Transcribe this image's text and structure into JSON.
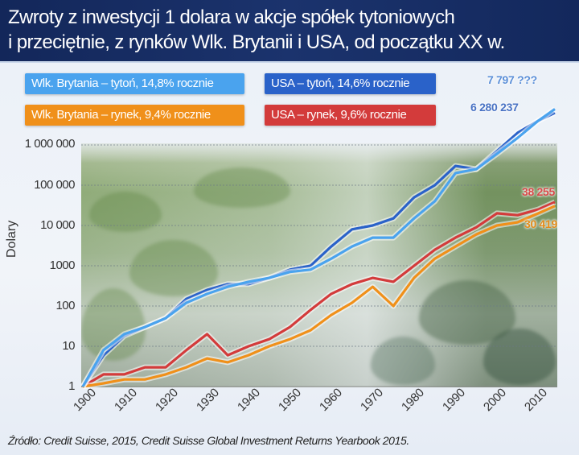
{
  "header": {
    "title_line1": "Zwroty z inwestycji 1 dolara w akcje spółek tytoniowych",
    "title_line2": "i przeciętnie, z rynków Wlk. Brytanii i USA, od początku XX w."
  },
  "legend": [
    {
      "label": "Wlk. Brytania – tytoń, 14,8% rocznie",
      "color": "#4aa3ee"
    },
    {
      "label": "USA – tytoń, 14,6% rocznie",
      "color": "#2a62c9"
    },
    {
      "label": "Wlk. Brytania – rynek, 9,4% rocznie",
      "color": "#f0901a"
    },
    {
      "label": "USA – rynek, 9,6% rocznie",
      "color": "#d33b3b"
    }
  ],
  "end_labels": {
    "uk_tobacco": "7 797 ???",
    "usa_tobacco": "6 280 237",
    "usa_market": "38 255",
    "uk_market": "30 419"
  },
  "axis": {
    "ylabel": "Dolary",
    "yticks": [
      "1 000 000",
      "100 000",
      "10 000",
      "1000",
      "100",
      "10",
      "1"
    ],
    "xticks": [
      "1900",
      "1910",
      "1920",
      "1930",
      "1940",
      "1950",
      "1960",
      "1970",
      "1980",
      "1990",
      "2000",
      "2010"
    ]
  },
  "source": "Źródło: Credit Suisse, 2015, Credit Suisse Global Investment Returns Yearbook 2015.",
  "chart_data": {
    "type": "line",
    "title": "Zwroty z inwestycji 1 dolara w akcje spółek tytoniowych i przeciętnie, z rynków Wlk. Brytanii i USA, od początku XX w.",
    "xlabel": "",
    "ylabel": "Dolary",
    "yscale": "log",
    "ylim": [
      1,
      1000000
    ],
    "xlim": [
      1900,
      2014
    ],
    "grid": "horizontal dotted",
    "legend_position": "top",
    "x": [
      1900,
      1905,
      1910,
      1915,
      1920,
      1925,
      1930,
      1935,
      1940,
      1945,
      1950,
      1955,
      1960,
      1965,
      1970,
      1975,
      1980,
      1985,
      1990,
      1995,
      2000,
      2005,
      2010,
      2014
    ],
    "series": [
      {
        "name": "Wlk. Brytania – tytoń, 14,8% rocznie",
        "color": "#4aa3ee",
        "values": [
          1,
          8,
          20,
          30,
          50,
          120,
          200,
          300,
          400,
          500,
          700,
          800,
          1500,
          3000,
          5000,
          5000,
          15000,
          40000,
          200000,
          250000,
          600000,
          1500000,
          4000000,
          7797000
        ]
      },
      {
        "name": "USA – tytoń, 14,6% rocznie",
        "color": "#2a62c9",
        "values": [
          1,
          6,
          18,
          30,
          50,
          150,
          250,
          350,
          350,
          500,
          800,
          1000,
          3000,
          8000,
          10000,
          15000,
          50000,
          100000,
          300000,
          250000,
          700000,
          2000000,
          4000000,
          6280237
        ]
      },
      {
        "name": "Wlk. Brytania – rynek, 9,4% rocznie",
        "color": "#f0901a",
        "values": [
          1,
          1.2,
          1.5,
          1.5,
          2,
          3,
          5,
          4,
          6,
          10,
          15,
          25,
          60,
          120,
          300,
          100,
          500,
          1500,
          3000,
          6000,
          10000,
          12000,
          20000,
          30419
        ]
      },
      {
        "name": "USA – rynek, 9,6% rocznie",
        "color": "#d33b3b",
        "values": [
          1,
          2,
          2,
          3,
          3,
          8,
          20,
          6,
          10,
          15,
          30,
          80,
          200,
          350,
          500,
          400,
          1000,
          2500,
          5000,
          9000,
          20000,
          18000,
          25000,
          38255
        ]
      }
    ]
  }
}
